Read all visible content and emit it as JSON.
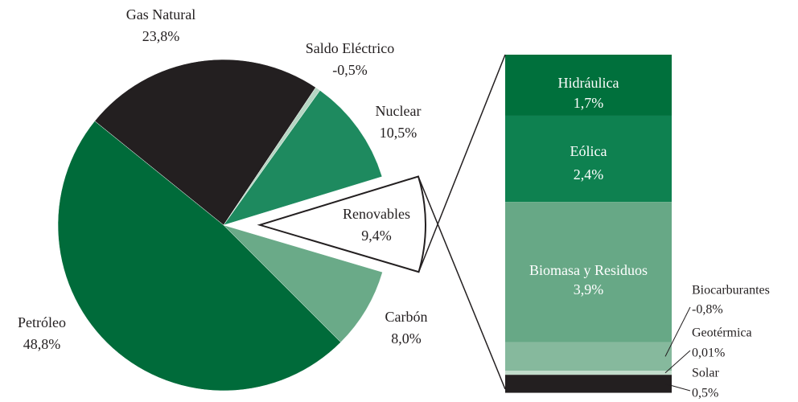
{
  "chart_data": [
    {
      "type": "pie",
      "categories": [
        "Petróleo",
        "Gas Natural",
        "Saldo Eléctrico",
        "Nuclear",
        "Renovables",
        "Carbón"
      ],
      "values": [
        48.8,
        23.8,
        -0.5,
        10.5,
        9.4,
        8.0
      ],
      "value_labels": [
        "48,8%",
        "23,8%",
        "-0,5%",
        "10,5%",
        "9,4%",
        "8,0%"
      ],
      "colors": [
        "#006b3a",
        "#231f20",
        "#b5d6c3",
        "#1e8a5f",
        "#ffffff",
        "#6aaa88"
      ]
    },
    {
      "type": "bar",
      "categories": [
        "Hidráulica",
        "Eólica",
        "Biomasa y Residuos",
        "Biocarburantes",
        "Geotérmica",
        "Solar"
      ],
      "values": [
        1.7,
        2.4,
        3.9,
        -0.8,
        0.01,
        0.5
      ],
      "value_labels": [
        "1,7%",
        "2,4%",
        "3,9%",
        "-0,8%",
        "0,01%",
        "0,5%"
      ],
      "colors": [
        "#00703c",
        "#0e8150",
        "#67a886",
        "#86b99d",
        "#c2dccb",
        "#231f20"
      ]
    }
  ]
}
